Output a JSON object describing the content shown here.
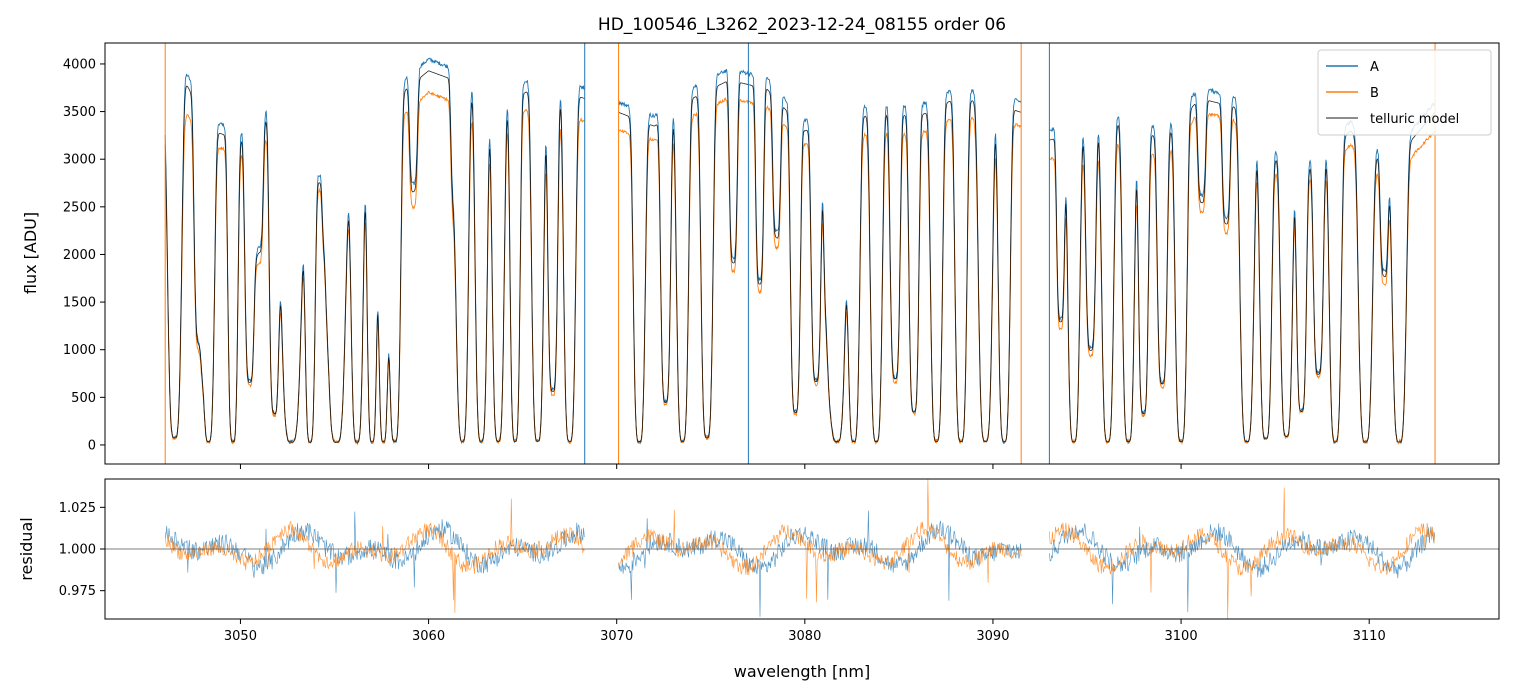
{
  "chart_data": [
    {
      "panel": "top",
      "type": "line",
      "title": "HD_100546_L3262_2023-12-24_08155  order 06",
      "xlabel": "",
      "ylabel": "flux [ADU]",
      "xlim": [
        3042.8,
        3116.9
      ],
      "ylim": [
        -200,
        4220
      ],
      "yticks": [
        0,
        500,
        1000,
        1500,
        2000,
        2500,
        3000,
        3500,
        4000
      ],
      "ytick_labels": [
        "0",
        "500",
        "1000",
        "1500",
        "2000",
        "2500",
        "3000",
        "3500",
        "4000"
      ],
      "xticks": [
        3050,
        3060,
        3070,
        3080,
        3090,
        3100,
        3110
      ],
      "segments": [
        [
          3046.0,
          3068.3
        ],
        [
          3070.1,
          3091.5
        ],
        [
          3093.0,
          3113.5
        ]
      ],
      "spike_x": [
        3046.0,
        3068.3,
        3070.1,
        3077.0,
        3091.5,
        3093.0,
        3113.5
      ],
      "continuum_points": {
        "x": [
          3046.0,
          3047.0,
          3048.5,
          3050.0,
          3051.5,
          3053.0,
          3055.0,
          3057.0,
          3058.5,
          3060.0,
          3062.0,
          3064.0,
          3066.0,
          3068.3,
          3070.1,
          3072.0,
          3074.0,
          3076.0,
          3078.0,
          3080.0,
          3082.0,
          3084.0,
          3086.0,
          3088.0,
          3090.0,
          3091.5,
          3093.0,
          3095.0,
          3097.0,
          3099.0,
          3101.0,
          3103.0,
          3105.0,
          3107.0,
          3109.0,
          3111.0,
          3113.5
        ],
        "A": [
          3700,
          3950,
          3400,
          3300,
          3550,
          2900,
          2800,
          3250,
          3800,
          4050,
          3900,
          3700,
          3900,
          3750,
          3600,
          3450,
          3750,
          3950,
          3850,
          3400,
          3500,
          3600,
          3550,
          3750,
          3700,
          3600,
          3300,
          3400,
          3500,
          3300,
          3750,
          3650,
          3100,
          3000,
          3400,
          3000,
          3600
        ],
        "B": [
          3450,
          3500,
          3150,
          3050,
          3250,
          2700,
          2650,
          3000,
          3450,
          3700,
          3550,
          3450,
          3550,
          3400,
          3300,
          3200,
          3450,
          3650,
          3550,
          3150,
          3200,
          3300,
          3250,
          3450,
          3400,
          3350,
          3000,
          3100,
          3200,
          3000,
          3500,
          3400,
          2850,
          2800,
          3150,
          2750,
          3300
        ]
      },
      "absorption_lines": [
        {
          "x": 3046.5,
          "d": 0.98,
          "w": 0.35
        },
        {
          "x": 3047.8,
          "d": 0.7,
          "w": 0.25
        },
        {
          "x": 3048.3,
          "d": 0.99,
          "w": 0.3
        },
        {
          "x": 3049.6,
          "d": 0.99,
          "w": 0.25
        },
        {
          "x": 3050.5,
          "d": 0.8,
          "w": 0.25
        },
        {
          "x": 3051.0,
          "d": 0.4,
          "w": 0.2
        },
        {
          "x": 3051.8,
          "d": 0.9,
          "w": 0.25
        },
        {
          "x": 3052.7,
          "d": 0.99,
          "w": 0.5
        },
        {
          "x": 3053.7,
          "d": 0.99,
          "w": 0.25
        },
        {
          "x": 3054.5,
          "d": 0.2,
          "w": 0.15
        },
        {
          "x": 3055.1,
          "d": 0.99,
          "w": 0.45
        },
        {
          "x": 3056.2,
          "d": 0.99,
          "w": 0.3
        },
        {
          "x": 3057.0,
          "d": 0.99,
          "w": 0.25
        },
        {
          "x": 3057.6,
          "d": 0.99,
          "w": 0.25
        },
        {
          "x": 3058.2,
          "d": 0.99,
          "w": 0.3
        },
        {
          "x": 3059.2,
          "d": 0.3,
          "w": 0.2
        },
        {
          "x": 3061.4,
          "d": 0.35,
          "w": 0.2
        },
        {
          "x": 3061.8,
          "d": 0.99,
          "w": 0.3
        },
        {
          "x": 3062.8,
          "d": 0.99,
          "w": 0.3
        },
        {
          "x": 3063.7,
          "d": 0.99,
          "w": 0.3
        },
        {
          "x": 3064.6,
          "d": 0.99,
          "w": 0.25
        },
        {
          "x": 3065.8,
          "d": 0.99,
          "w": 0.3
        },
        {
          "x": 3066.6,
          "d": 0.85,
          "w": 0.25
        },
        {
          "x": 3067.5,
          "d": 0.99,
          "w": 0.3
        },
        {
          "x": 3071.2,
          "d": 0.99,
          "w": 0.3
        },
        {
          "x": 3072.6,
          "d": 0.87,
          "w": 0.25
        },
        {
          "x": 3073.5,
          "d": 0.99,
          "w": 0.3
        },
        {
          "x": 3074.8,
          "d": 0.98,
          "w": 0.3
        },
        {
          "x": 3076.2,
          "d": 0.5,
          "w": 0.2
        },
        {
          "x": 3077.6,
          "d": 0.55,
          "w": 0.2
        },
        {
          "x": 3078.5,
          "d": 0.4,
          "w": 0.2
        },
        {
          "x": 3079.5,
          "d": 0.9,
          "w": 0.25
        },
        {
          "x": 3080.6,
          "d": 0.8,
          "w": 0.25
        },
        {
          "x": 3081.2,
          "d": 0.5,
          "w": 0.2
        },
        {
          "x": 3081.7,
          "d": 0.99,
          "w": 0.45
        },
        {
          "x": 3082.6,
          "d": 0.99,
          "w": 0.3
        },
        {
          "x": 3083.8,
          "d": 0.99,
          "w": 0.3
        },
        {
          "x": 3084.8,
          "d": 0.8,
          "w": 0.25
        },
        {
          "x": 3085.8,
          "d": 0.9,
          "w": 0.25
        },
        {
          "x": 3087.0,
          "d": 0.99,
          "w": 0.3
        },
        {
          "x": 3088.3,
          "d": 0.99,
          "w": 0.3
        },
        {
          "x": 3089.6,
          "d": 0.99,
          "w": 0.35
        },
        {
          "x": 3090.6,
          "d": 0.99,
          "w": 0.3
        },
        {
          "x": 3093.6,
          "d": 0.6,
          "w": 0.2
        },
        {
          "x": 3094.3,
          "d": 0.99,
          "w": 0.3
        },
        {
          "x": 3095.2,
          "d": 0.7,
          "w": 0.25
        },
        {
          "x": 3096.1,
          "d": 0.99,
          "w": 0.3
        },
        {
          "x": 3097.2,
          "d": 0.99,
          "w": 0.3
        },
        {
          "x": 3098.0,
          "d": 0.9,
          "w": 0.25
        },
        {
          "x": 3099.0,
          "d": 0.8,
          "w": 0.25
        },
        {
          "x": 3100.0,
          "d": 0.99,
          "w": 0.3
        },
        {
          "x": 3101.1,
          "d": 0.3,
          "w": 0.2
        },
        {
          "x": 3102.4,
          "d": 0.35,
          "w": 0.2
        },
        {
          "x": 3103.5,
          "d": 0.99,
          "w": 0.35
        },
        {
          "x": 3104.5,
          "d": 0.98,
          "w": 0.3
        },
        {
          "x": 3105.6,
          "d": 0.97,
          "w": 0.3
        },
        {
          "x": 3106.4,
          "d": 0.88,
          "w": 0.25
        },
        {
          "x": 3107.3,
          "d": 0.75,
          "w": 0.25
        },
        {
          "x": 3108.2,
          "d": 0.99,
          "w": 0.3
        },
        {
          "x": 3109.8,
          "d": 0.99,
          "w": 0.35
        },
        {
          "x": 3110.8,
          "d": 0.4,
          "w": 0.2
        },
        {
          "x": 3111.6,
          "d": 0.99,
          "w": 0.35
        }
      ],
      "series": [
        {
          "name": "A",
          "color": "#1f77b4"
        },
        {
          "name": "B",
          "color": "#ff7f0e"
        },
        {
          "name": "telluric model",
          "color": "#000000"
        }
      ],
      "legend": "top-right"
    },
    {
      "panel": "bottom",
      "type": "line",
      "xlabel": "wavelength [nm]",
      "ylabel": "residual",
      "xlim": [
        3042.8,
        3116.9
      ],
      "ylim": [
        0.958,
        1.042
      ],
      "yticks": [
        0.975,
        1.0,
        1.025
      ],
      "ytick_labels": [
        "0.975",
        "1.000",
        "1.025"
      ],
      "xticks": [
        3050,
        3060,
        3070,
        3080,
        3090,
        3100,
        3110
      ],
      "xtick_labels": [
        "3050",
        "3060",
        "3070",
        "3080",
        "3090",
        "3100",
        "3110"
      ],
      "reference_line": 1.0,
      "series": [
        {
          "name": "A",
          "color": "#1f77b4",
          "noise": 0.006
        },
        {
          "name": "B",
          "color": "#ff7f0e",
          "noise": 0.005
        }
      ]
    }
  ]
}
